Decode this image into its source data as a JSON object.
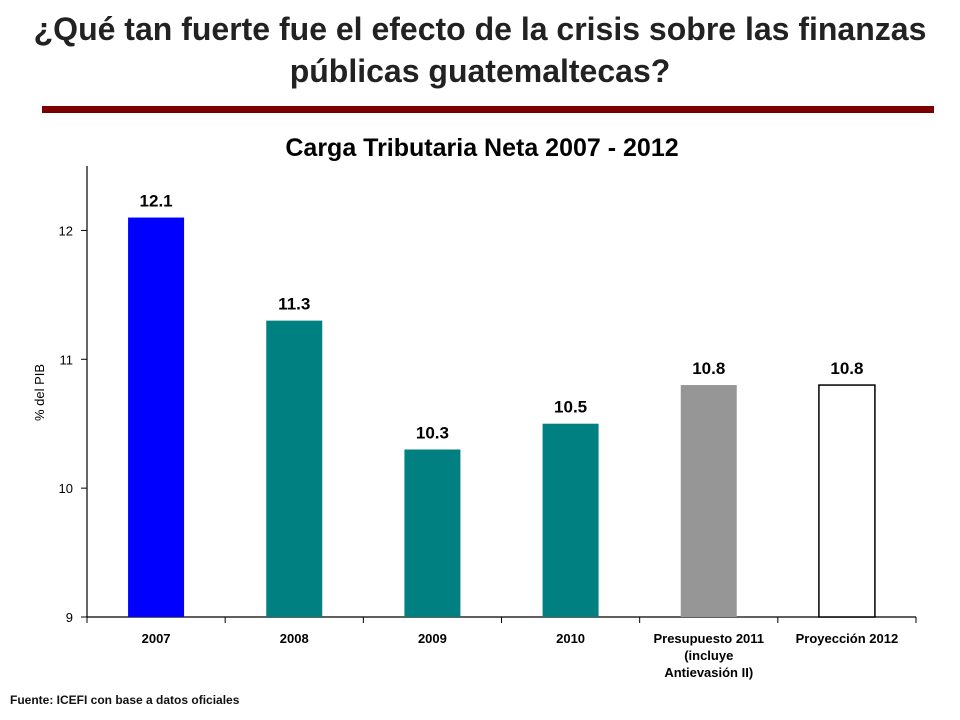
{
  "slide": {
    "title": "¿Qué tan fuerte fue el efecto de la crisis sobre las finanzas públicas guatemaltecas?",
    "source": "Fuente: ICEFI con base a datos oficiales",
    "accent_color": "#7a0000"
  },
  "chart_data": {
    "type": "bar",
    "title": "Carga Tributaria Neta 2007 - 2012",
    "xlabel": "",
    "ylabel": "% del PIB",
    "ylim": [
      9,
      12.5
    ],
    "yticks": [
      9,
      10,
      11,
      12
    ],
    "grid": false,
    "legend": "none",
    "categories": [
      [
        "2007"
      ],
      [
        "2008"
      ],
      [
        "2009"
      ],
      [
        "2010"
      ],
      [
        "Presupuesto 2011",
        "(incluye",
        "Antievasión II)"
      ],
      [
        "Proyección 2012"
      ]
    ],
    "values": [
      12.1,
      11.3,
      10.3,
      10.5,
      10.8,
      10.8
    ],
    "value_labels": [
      "12.1",
      "11.3",
      "10.3",
      "10.5",
      "10.8",
      "10.8"
    ],
    "bar_colors": [
      "#0000ff",
      "#008080",
      "#008080",
      "#008080",
      "#969696",
      "#ffffff"
    ]
  }
}
